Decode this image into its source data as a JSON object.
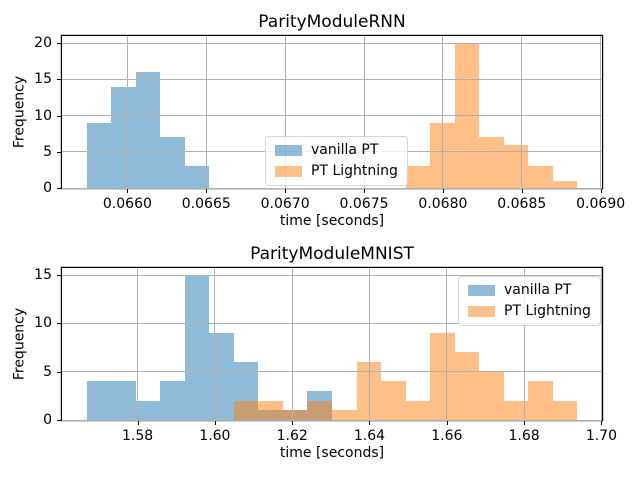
{
  "figure": {
    "background": "#ffffff"
  },
  "colors": {
    "grid": "#b0b0b0",
    "spine": "#000000",
    "bar_alpha": 0.5
  },
  "legend_labels": [
    "vanilla PT",
    "PT Lightning"
  ],
  "chart_data": [
    {
      "type": "bar",
      "subtype": "histogram",
      "title": "ParityModuleRNN",
      "xlabel": "time [seconds]",
      "ylabel": "Frequency",
      "xlim": [
        0.0655854,
        0.0690086
      ],
      "ylim": [
        0,
        21
      ],
      "xticks": [
        0.066,
        0.0665,
        0.067,
        0.0675,
        0.068,
        0.0685,
        0.069
      ],
      "xtick_labels": [
        "0.0660",
        "0.0665",
        "0.0670",
        "0.0675",
        "0.0680",
        "0.0685",
        "0.0690"
      ],
      "yticks": [
        0,
        5,
        10,
        15,
        20
      ],
      "ytick_labels": [
        "0",
        "5",
        "10",
        "15",
        "20"
      ],
      "grid": true,
      "bins": {
        "start": 0.065741,
        "width": 0.0001556,
        "count": 20
      },
      "series": [
        {
          "name": "vanilla PT",
          "color": "#1f77b4",
          "first_bin": 0,
          "counts": [
            9,
            14,
            16,
            7,
            3
          ]
        },
        {
          "name": "PT Lightning",
          "color": "#ff7f0e",
          "first_bin": 13,
          "counts": [
            3,
            9,
            20,
            7,
            6,
            3,
            1
          ]
        }
      ],
      "legend_position": "lower-center"
    },
    {
      "type": "bar",
      "subtype": "histogram",
      "title": "ParityModuleMNIST",
      "xlabel": "time [seconds]",
      "ylabel": "Frequency",
      "xlim": [
        1.56045,
        1.70015
      ],
      "ylim": [
        0,
        15.75
      ],
      "xticks": [
        1.58,
        1.6,
        1.62,
        1.64,
        1.66,
        1.68,
        1.7
      ],
      "xtick_labels": [
        "1.58",
        "1.60",
        "1.62",
        "1.64",
        "1.66",
        "1.68",
        "1.70"
      ],
      "yticks": [
        0,
        5,
        10,
        15
      ],
      "ytick_labels": [
        "0",
        "5",
        "10",
        "15"
      ],
      "grid": true,
      "bins": {
        "start": 1.5668,
        "width": 0.00635,
        "count": 20
      },
      "series": [
        {
          "name": "vanilla PT",
          "color": "#1f77b4",
          "first_bin": 0,
          "counts": [
            4,
            4,
            2,
            4,
            15,
            9,
            6,
            1,
            1,
            3
          ]
        },
        {
          "name": "PT Lightning",
          "color": "#ff7f0e",
          "first_bin": 6,
          "counts": [
            2,
            2,
            1,
            2,
            1,
            6,
            4,
            2,
            9,
            7,
            5,
            2,
            4,
            2
          ]
        }
      ],
      "legend_position": "upper-right"
    }
  ]
}
